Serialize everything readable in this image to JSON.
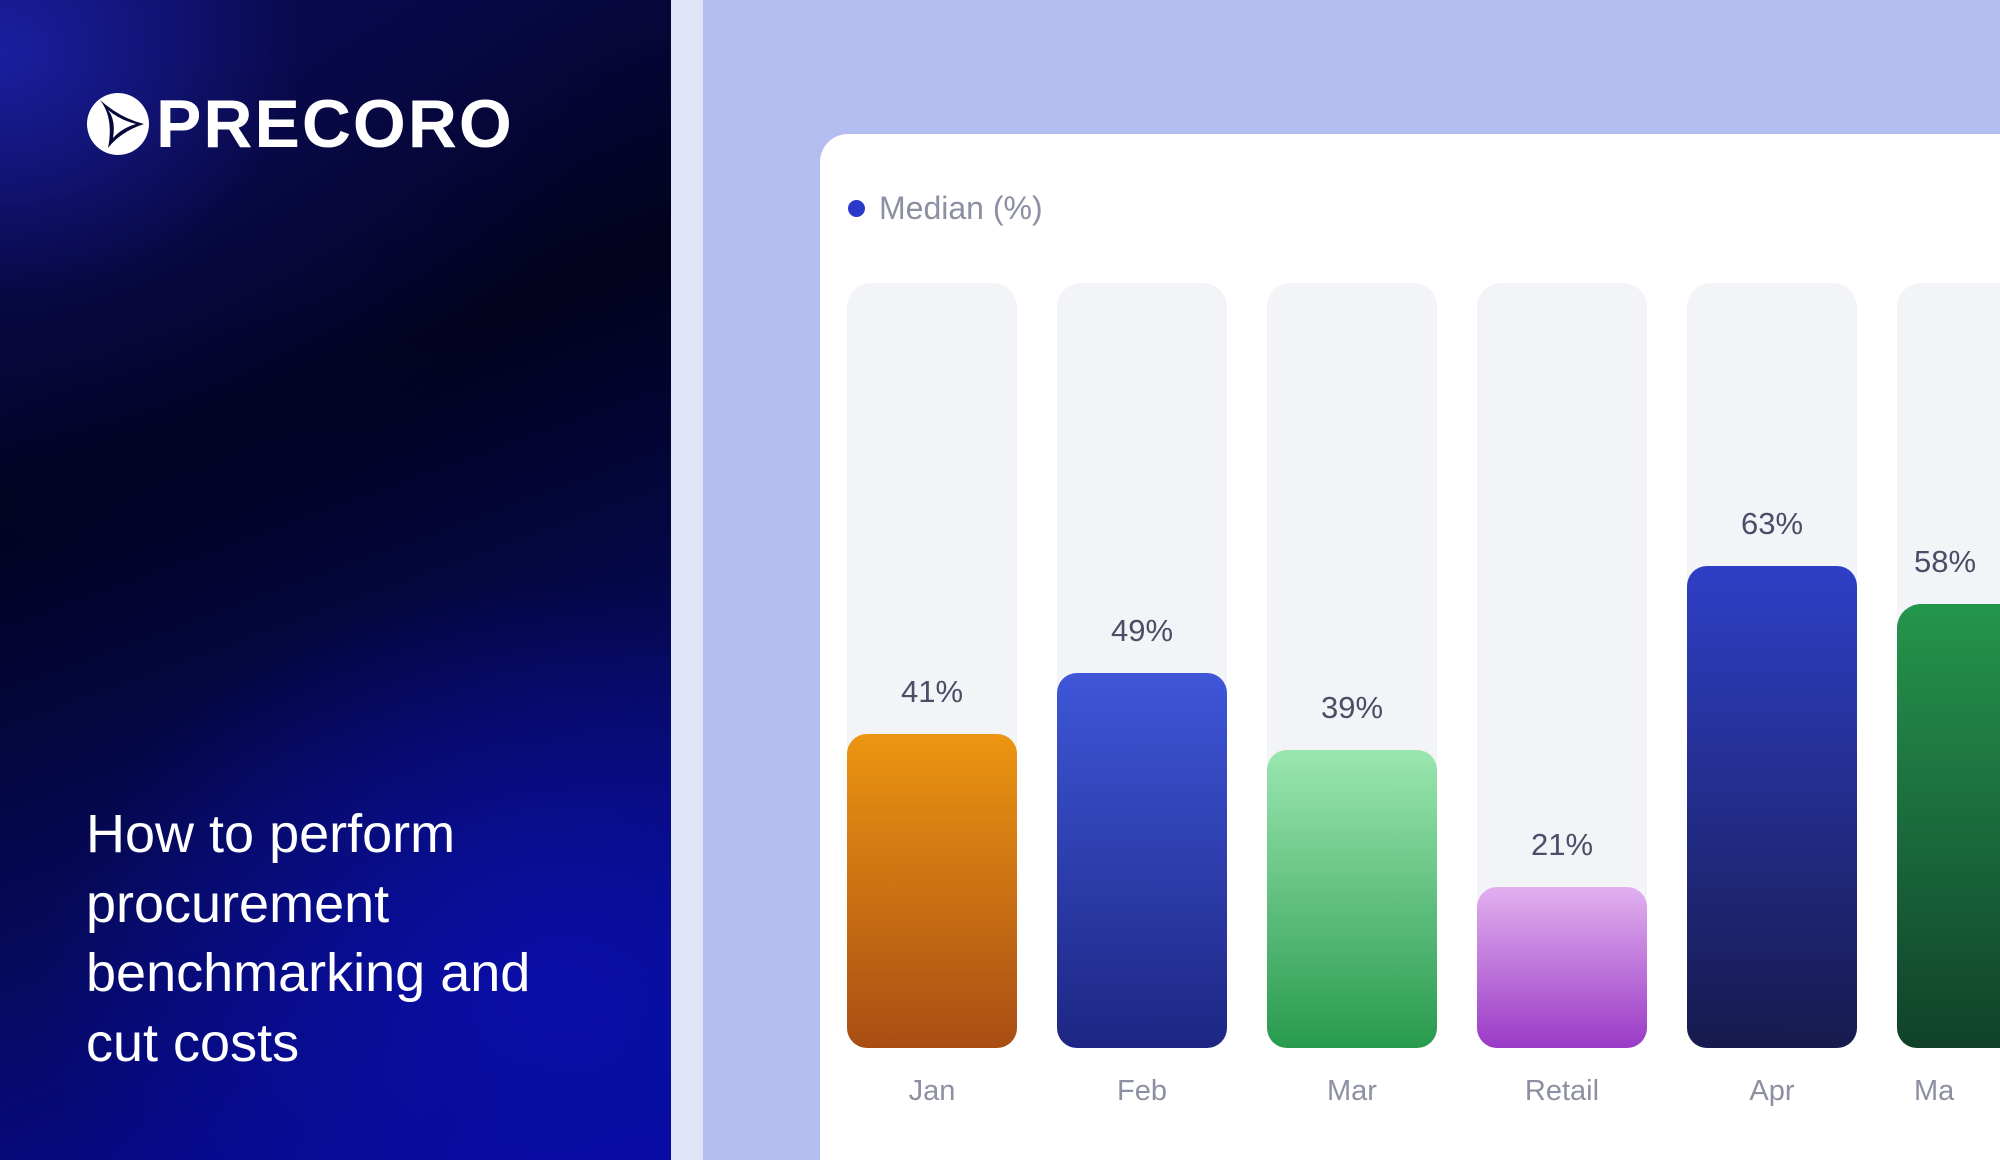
{
  "brand": {
    "name": "PRECORO"
  },
  "headline": "How to perform procurement benchmarking and cut costs",
  "chart_data": {
    "type": "bar",
    "legend": "Median (%)",
    "legend_color": "#2b3ac9",
    "ylim": [
      0,
      100
    ],
    "categories": [
      "Jan",
      "Feb",
      "Mar",
      "Retail",
      "Apr",
      "Ma"
    ],
    "values": [
      41,
      49,
      39,
      21,
      63,
      58
    ],
    "value_labels": [
      "41%",
      "49%",
      "39%",
      "21%",
      "63%",
      "58%"
    ],
    "gradients": [
      [
        "#ec9512",
        "#a84e14"
      ],
      [
        "#3f56d8",
        "#1d2683"
      ],
      [
        "#9be6b0",
        "#289a4e"
      ],
      [
        "#e2b0ef",
        "#9a3ac6"
      ],
      [
        "#2f3fc6",
        "#161a4d"
      ],
      [
        "#25954c",
        "#10412a"
      ]
    ]
  }
}
